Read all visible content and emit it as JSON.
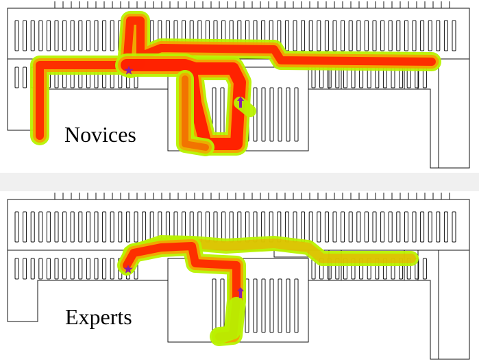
{
  "panels": [
    {
      "label": "Novices",
      "start_marker": "star-icon",
      "end_marker": "up-arrow-icon"
    },
    {
      "label": "Experts",
      "start_marker": "star-icon",
      "end_marker": "up-arrow-icon"
    }
  ],
  "colors": {
    "outline": "#111111",
    "heat_low": "#b8f200",
    "heat_mid": "#f5a000",
    "heat_high": "#ff1a00",
    "marker": "#8a1fa8"
  }
}
